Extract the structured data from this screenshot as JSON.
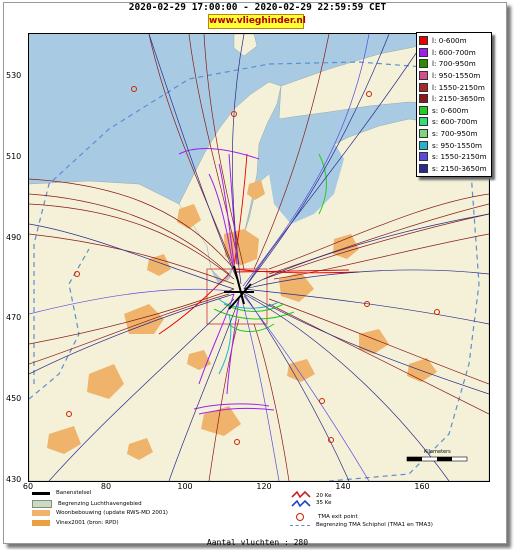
{
  "header": {
    "title": "2020-02-29 17:00:00 - 2020-02-29 22:59:59 CET",
    "brand": "www.vlieghinder.nl"
  },
  "axes": {
    "y_ticks": [
      "530",
      "510",
      "490",
      "470",
      "450",
      "430"
    ],
    "x_ticks": [
      "60",
      "80",
      "100",
      "120",
      "140",
      "160"
    ]
  },
  "legend": {
    "items": [
      {
        "label": "l: 0-600m",
        "color": "#e60000"
      },
      {
        "label": "l: 600-700m",
        "color": "#a020f0"
      },
      {
        "label": "l: 700-950m",
        "color": "#2e8b00"
      },
      {
        "label": "l: 950-1550m",
        "color": "#d4508c"
      },
      {
        "label": "l: 1550-2150m",
        "color": "#a52a2a"
      },
      {
        "label": "l: 2150-3650m",
        "color": "#8b1a1a"
      },
      {
        "label": "s: 0-600m",
        "color": "#22cc22"
      },
      {
        "label": "s: 600-700m",
        "color": "#33dd77"
      },
      {
        "label": "s: 700-950m",
        "color": "#7cd67c"
      },
      {
        "label": "s: 950-1550m",
        "color": "#22b5c8"
      },
      {
        "label": "s: 1550-2150m",
        "color": "#5b4ae0"
      },
      {
        "label": "s: 2150-3650m",
        "color": "#2a2a8c"
      }
    ]
  },
  "bottom_legend": {
    "runways": "Banenstelsel",
    "airport_boundary": "Begrenzing Luchthavengebied",
    "housing": "Woonbebouwing (update RWS-MD 2001)",
    "vinex": "Vinex2001 (bron: RPD)",
    "noise_zone_1": "20 Ke",
    "noise_zone_2": "35 Ke",
    "tma_exit": "TMA exit point",
    "tma_boundary": "Begrenzing TMA Schiphol  (TMA1 en TMA3)",
    "scale": "Kilometers"
  },
  "footer": {
    "flights_label": "Aantal vluchten : 280"
  },
  "colors": {
    "sea": "#a8cbe3",
    "land": "#f4f1d8",
    "urban": "#efb36b",
    "tma_boundary": "#5b8fcf",
    "exit_point": "#cc2200"
  }
}
